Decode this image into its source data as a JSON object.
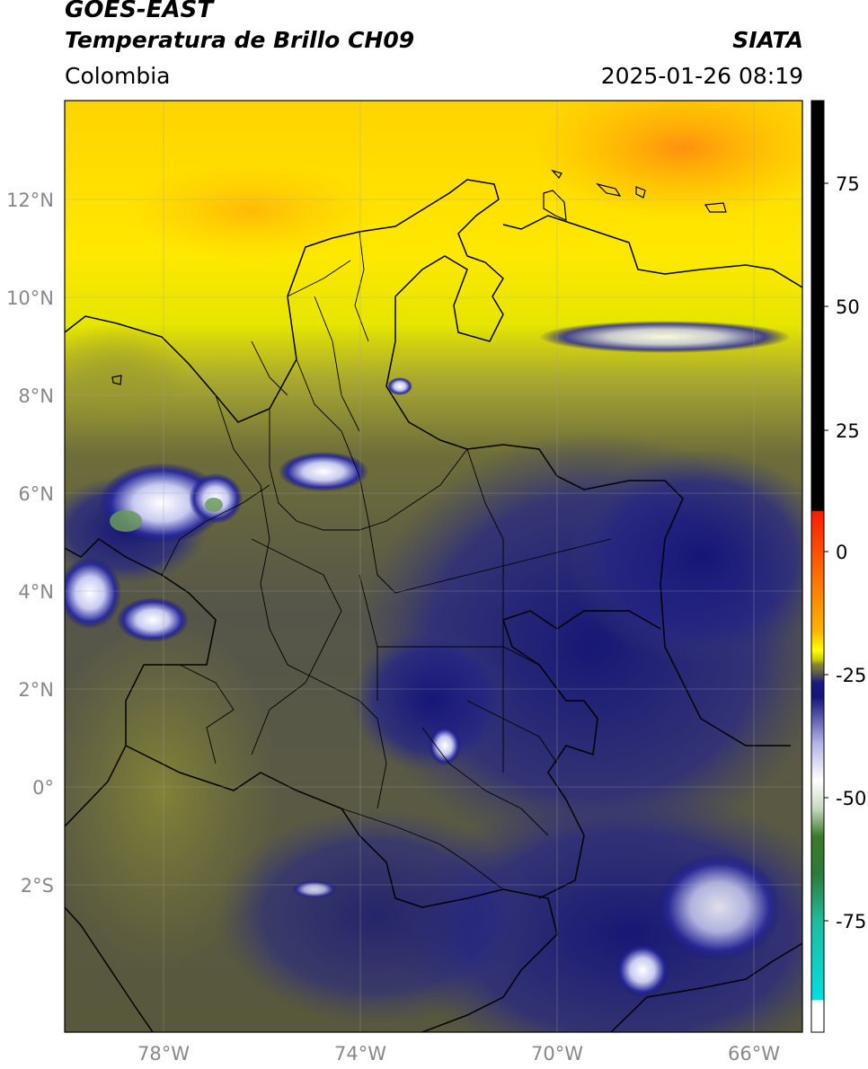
{
  "header": {
    "satellite": "GOES-EAST",
    "product": "Temperatura de Brillo CH09",
    "brand": "SIATA",
    "region": "Colombia",
    "datetime": "2025-01-26 08:19"
  },
  "axes": {
    "lat_ticks": [
      "12°N",
      "10°N",
      "8°N",
      "6°N",
      "4°N",
      "2°N",
      "0°",
      "2°S"
    ],
    "lon_ticks": [
      "78°W",
      "74°W",
      "70°W",
      "66°W"
    ]
  },
  "colorbar": {
    "ticks": [
      "75",
      "50",
      "25",
      "0",
      "-25",
      "-50",
      "-75"
    ],
    "colors": {
      "black": "#000000",
      "red": "#ff1a00",
      "orange": "#ff8c00",
      "yellow": "#ffff00",
      "olive": "#7d7d2a",
      "navy": "#10107a",
      "lavender": "#b4b4e8",
      "white": "#ffffff",
      "green": "#3b7a2a",
      "cyan": "#00e0e0"
    }
  },
  "map": {
    "extent": {
      "lon_min": -80,
      "lon_max": -65,
      "lat_min": -5,
      "lat_max": 14
    },
    "colors": {
      "ocean_north": "#ffd800",
      "orange_blob": "#ff9a18",
      "olive": "#6e6e38",
      "gray_olive": "#5a5a46",
      "navy": "#2a2a80",
      "deep_navy": "#141478",
      "cloud_white": "#eef0ff",
      "cloud_green": "#6a9a5a",
      "yellow_green": "#bcbc28"
    }
  }
}
